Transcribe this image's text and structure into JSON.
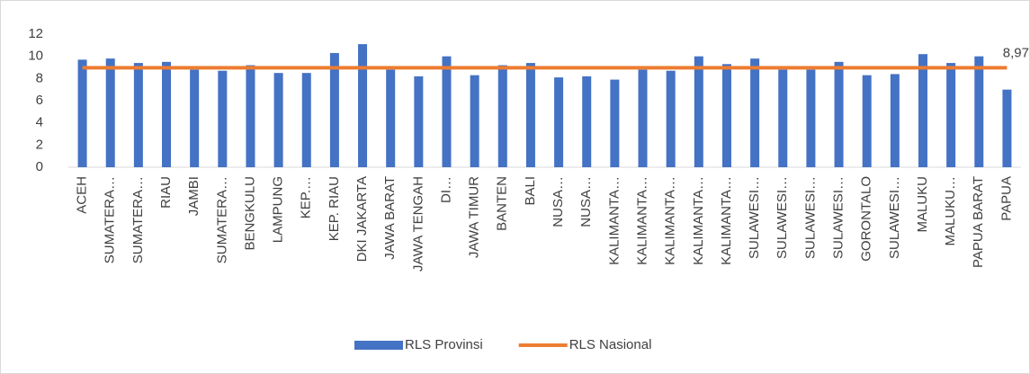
{
  "chart_data": {
    "type": "bar-line",
    "categories": [
      "ACEH",
      "SUMATERA…",
      "SUMATERA…",
      "RIAU",
      "JAMBI",
      "SUMATERA…",
      "BENGKULU",
      "LAMPUNG",
      "KEP.…",
      "KEP. RIAU",
      "DKI JAKARTA",
      "JAWA BARAT",
      "JAWA TENGAH",
      "DI…",
      "JAWA TIMUR",
      "BANTEN",
      "BALI",
      "NUSA…",
      "NUSA…",
      "KALIMANTA…",
      "KALIMANTA…",
      "KALIMANTA…",
      "KALIMANTA…",
      "KALIMANTA…",
      "SULAWESI…",
      "SULAWESI…",
      "SULAWESI…",
      "SULAWESI…",
      "GORONTALO",
      "SULAWESI…",
      "MALUKU",
      "MALUKU…",
      "PAPUA BARAT",
      "PAPUA"
    ],
    "series": [
      {
        "name": "RLS Provinsi",
        "type": "bar",
        "color": "#4472c4",
        "values": [
          9.7,
          9.8,
          9.4,
          9.5,
          8.8,
          8.7,
          9.2,
          8.5,
          8.5,
          10.3,
          11.1,
          8.8,
          8.2,
          10.0,
          8.3,
          9.2,
          9.4,
          8.1,
          8.2,
          7.9,
          8.8,
          8.7,
          10.0,
          9.3,
          9.8,
          8.8,
          8.8,
          9.5,
          8.3,
          8.4,
          10.2,
          9.4,
          10.0,
          7.0
        ]
      },
      {
        "name": "RLS Nasional",
        "type": "line",
        "color": "#ed7d31",
        "values": [
          8.97,
          8.97,
          8.97,
          8.97,
          8.97,
          8.97,
          8.97,
          8.97,
          8.97,
          8.97,
          8.97,
          8.97,
          8.97,
          8.97,
          8.97,
          8.97,
          8.97,
          8.97,
          8.97,
          8.97,
          8.97,
          8.97,
          8.97,
          8.97,
          8.97,
          8.97,
          8.97,
          8.97,
          8.97,
          8.97,
          8.97,
          8.97,
          8.97,
          8.97
        ],
        "value_labels": [
          null,
          null,
          null,
          null,
          null,
          null,
          null,
          null,
          null,
          null,
          null,
          null,
          null,
          null,
          null,
          null,
          null,
          null,
          null,
          null,
          null,
          null,
          null,
          null,
          null,
          null,
          null,
          null,
          null,
          null,
          null,
          null,
          null,
          "8,97"
        ]
      }
    ],
    "ylim": [
      0,
      12
    ],
    "yticks": [
      0,
      2,
      4,
      6,
      8,
      10,
      12
    ],
    "grid": false,
    "legend": "bottom"
  }
}
